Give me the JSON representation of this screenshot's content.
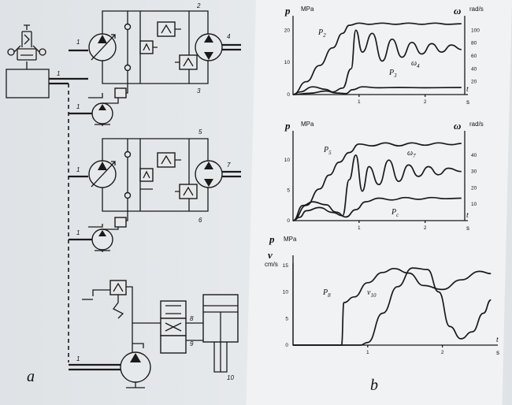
{
  "panels": {
    "a": "a",
    "b": "b"
  },
  "schematic": {
    "port_labels": [
      "1",
      "1",
      "1",
      "1",
      "1",
      "1"
    ],
    "node_labels": [
      "2",
      "3",
      "4",
      "5",
      "6",
      "7",
      "8",
      "9",
      "10"
    ]
  },
  "chart_data": [
    {
      "type": "line",
      "left_axis": {
        "symbol": "p",
        "unit": "MPa",
        "ticks": [
          "20",
          "10",
          "0"
        ],
        "range": [
          0,
          23
        ]
      },
      "right_axis": {
        "symbol": "ω",
        "unit": "rad/s",
        "ticks": [
          "100",
          "80",
          "60",
          "40",
          "20"
        ],
        "range": [
          0,
          115
        ]
      },
      "x_axis": {
        "symbol": "t",
        "unit": "s",
        "ticks": [
          "1",
          "2"
        ],
        "range": [
          0,
          2.6
        ]
      },
      "series": [
        {
          "name": "p2",
          "label": "P2",
          "axis": "left",
          "x": [
            0,
            0.2,
            0.4,
            0.6,
            0.75,
            0.85,
            1.0,
            1.15,
            1.35,
            1.55,
            1.75,
            1.95,
            2.15,
            2.35,
            2.55
          ],
          "y": [
            0,
            4,
            9,
            14.5,
            19,
            21.5,
            22.2,
            21.8,
            22.2,
            21.8,
            22.2,
            21.8,
            22.2,
            21.8,
            22
          ]
        },
        {
          "name": "omega4",
          "label": "ω4",
          "axis": "right",
          "x": [
            0,
            0.1,
            0.3,
            0.5,
            0.6,
            0.75,
            0.88,
            0.95,
            1.05,
            1.2,
            1.35,
            1.5,
            1.65,
            1.8,
            1.95,
            2.1,
            2.25,
            2.4,
            2.55
          ],
          "y": [
            0,
            4,
            12,
            8,
            4,
            10,
            40,
            100,
            66,
            95,
            52,
            86,
            58,
            81,
            63,
            79,
            66,
            77,
            70
          ]
        },
        {
          "name": "p3",
          "label": "P3",
          "axis": "left",
          "x": [
            0,
            0.25,
            0.5,
            0.65,
            0.8,
            0.9,
            1.05,
            1.3,
            1.6,
            2.0,
            2.55
          ],
          "y": [
            0,
            0.4,
            1.1,
            0.5,
            0.3,
            1.5,
            2.4,
            2.1,
            2.2,
            2.1,
            2.2
          ]
        }
      ]
    },
    {
      "type": "line",
      "left_axis": {
        "symbol": "p",
        "unit": "MPa",
        "ticks": [
          "10",
          "5",
          "0"
        ],
        "range": [
          0,
          14
        ]
      },
      "right_axis": {
        "symbol": "ω",
        "unit": "rad/s",
        "ticks": [
          "40",
          "30",
          "20",
          "10"
        ],
        "range": [
          0,
          52
        ]
      },
      "x_axis": {
        "symbol": "t",
        "unit": "s",
        "ticks": [
          "1",
          "2"
        ],
        "range": [
          0,
          2.6
        ]
      },
      "series": [
        {
          "name": "p5",
          "label": "P5",
          "axis": "left",
          "x": [
            0,
            0.2,
            0.4,
            0.55,
            0.7,
            0.85,
            1.0,
            1.2,
            1.4,
            1.6,
            1.8,
            2.0,
            2.2,
            2.4,
            2.55
          ],
          "y": [
            0,
            2.5,
            5.2,
            7.5,
            9.6,
            11.2,
            12.6,
            12.3,
            12.8,
            12.3,
            12.8,
            12.4,
            12.8,
            12.5,
            12.7
          ]
        },
        {
          "name": "omega7",
          "label": "ω7",
          "axis": "right",
          "x": [
            0,
            0.1,
            0.2,
            0.4,
            0.6,
            0.75,
            0.85,
            0.95,
            1.05,
            1.15,
            1.3,
            1.45,
            1.6,
            1.75,
            1.9,
            2.05,
            2.2,
            2.35,
            2.55
          ],
          "y": [
            0,
            2,
            6,
            8,
            5,
            3,
            25,
            40,
            18,
            33,
            22,
            37,
            24,
            34,
            27,
            33,
            28,
            32,
            30
          ]
        },
        {
          "name": "pc",
          "label": "PC",
          "axis": "left",
          "x": [
            0,
            0.15,
            0.3,
            0.5,
            0.65,
            0.8,
            0.95,
            1.1,
            1.3,
            1.5,
            1.7,
            1.9,
            2.1,
            2.3,
            2.55
          ],
          "y": [
            0,
            2.5,
            3.1,
            2.6,
            1.4,
            0.6,
            1.8,
            3.1,
            3.7,
            3.4,
            3.8,
            3.5,
            3.8,
            3.6,
            3.7
          ]
        }
      ]
    },
    {
      "type": "line",
      "left_axis": {
        "symbol": "p",
        "unit": "MPa",
        "ticks": [],
        "range": [
          0,
          15
        ]
      },
      "right_axis": {
        "symbol": "v",
        "unit": "cm/s",
        "ticks": [
          "15",
          "10",
          "5",
          "0"
        ],
        "range": [
          0,
          16
        ]
      },
      "x_axis": {
        "symbol": "t",
        "unit": "s",
        "ticks": [
          "1",
          "2"
        ],
        "range": [
          0,
          2.7
        ]
      },
      "series": [
        {
          "name": "p8",
          "label": "P8",
          "axis": "left",
          "x": [
            0,
            0.5,
            0.65,
            0.68,
            0.82,
            1.0,
            1.2,
            1.35,
            1.55,
            1.75,
            2.0,
            2.25,
            2.5,
            2.65
          ],
          "y": [
            0,
            0,
            0,
            7.5,
            8.5,
            11,
            12.8,
            13.5,
            12.7,
            10.5,
            9.8,
            11.5,
            13,
            12.6
          ]
        },
        {
          "name": "v10",
          "label": "v10",
          "axis": "right",
          "x": [
            0,
            0.9,
            1.0,
            1.2,
            1.4,
            1.6,
            1.8,
            1.95,
            2.1,
            2.25,
            2.4,
            2.55,
            2.65
          ],
          "y": [
            0,
            0,
            0.5,
            6,
            11,
            14.5,
            14.2,
            10,
            3.5,
            1.2,
            2.5,
            6,
            8.5
          ]
        }
      ]
    }
  ]
}
